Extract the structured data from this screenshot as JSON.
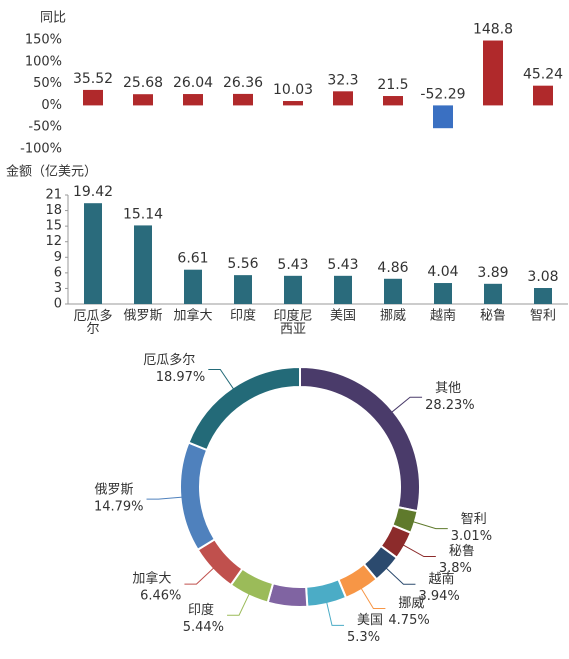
{
  "chart_data": [
    {
      "type": "bar",
      "y_label": "同比",
      "categories": [
        null,
        null,
        null,
        null,
        null,
        null,
        null,
        null,
        null,
        null
      ],
      "values": [
        35.52,
        25.68,
        26.04,
        26.36,
        10.03,
        32.3,
        21.5,
        -52.29,
        148.8,
        45.24
      ],
      "color": "#b0292b",
      "negative_color": "#3a70c2",
      "ylim": [
        -100,
        150
      ],
      "yticks": [
        {
          "value": -100,
          "label": "-100%"
        },
        {
          "value": -50,
          "label": "-50%"
        },
        {
          "value": 0,
          "label": "0%"
        },
        {
          "value": 50,
          "label": "50%"
        },
        {
          "value": 100,
          "label": "100%"
        },
        {
          "value": 150,
          "label": "150%"
        }
      ],
      "axis_lines": false
    },
    {
      "type": "bar",
      "y_label": "金额（亿美元）",
      "categories": [
        "厄瓜多尔",
        "俄罗斯",
        "加拿大",
        "印度",
        "印度尼西亚",
        "美国",
        "挪威",
        "越南",
        "秘鲁",
        "智利"
      ],
      "values": [
        19.42,
        15.14,
        6.61,
        5.56,
        5.43,
        5.43,
        4.86,
        4.04,
        3.89,
        3.08
      ],
      "color": "#2a6b7c",
      "negative_color": "#2a6b7c",
      "ylim": [
        0,
        21
      ],
      "yticks": [
        0,
        3,
        6,
        9,
        12,
        15,
        18,
        21
      ],
      "axis_lines": true
    },
    {
      "type": "donut",
      "categories": [
        "其他",
        "智利",
        "秘鲁",
        "越南",
        "挪威",
        "美国",
        null,
        "印度",
        "加拿大",
        "俄罗斯",
        "厄瓜多尔"
      ],
      "values": [
        28.23,
        3.01,
        3.8,
        3.94,
        4.75,
        5.3,
        5.31,
        5.44,
        6.46,
        14.79,
        18.97
      ],
      "value_labels": [
        "28.23%",
        "3.01%",
        "3.8%",
        "3.94%",
        "4.75%",
        "5.3%",
        null,
        "5.44%",
        "6.46%",
        "14.79%",
        "18.97%"
      ],
      "colors": [
        "#4a3b6a",
        "#5f7a2c",
        "#8c2b2b",
        "#2b4a6e",
        "#f79646",
        "#4bacc6",
        "#8064a2",
        "#9bbb59",
        "#c0504d",
        "#4f81bd",
        "#236a78"
      ]
    }
  ]
}
